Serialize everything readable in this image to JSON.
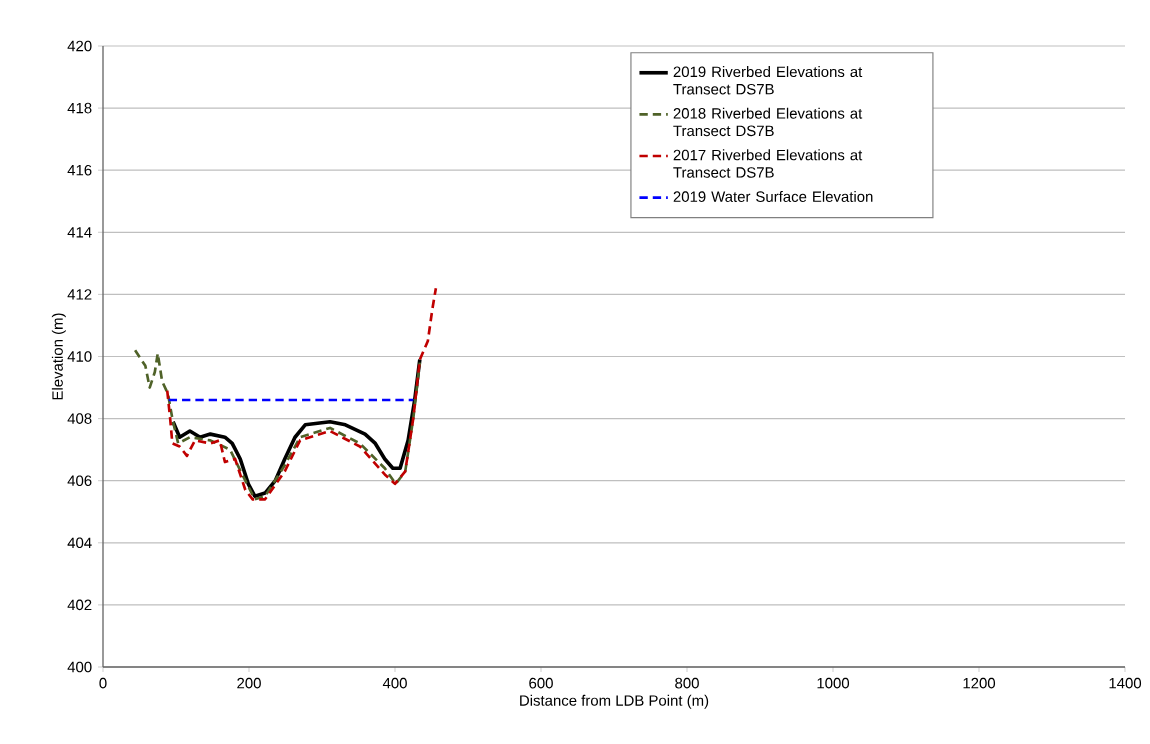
{
  "chart_data": {
    "type": "line",
    "xlabel": "Distance from LDB Point (m)",
    "ylabel": "Elevation (m)",
    "xlim": [
      0,
      1400
    ],
    "xticks": [
      0,
      200,
      400,
      600,
      800,
      1000,
      1200,
      1400
    ],
    "ylim": [
      400,
      420
    ],
    "yticks": [
      400,
      402,
      404,
      406,
      408,
      410,
      412,
      414,
      416,
      418,
      420
    ],
    "grid": "y",
    "legend": "top right",
    "marker": "none",
    "series": [
      {
        "name": "2019 Riverbed Elevations at Transect DS7B",
        "color": "#000000",
        "line_style": "solid",
        "x": [
          96,
          105,
          119,
          133,
          147,
          167,
          177,
          188,
          199,
          208,
          222,
          236,
          249,
          263,
          277,
          311,
          332,
          359,
          373,
          386,
          397,
          407,
          418,
          427,
          434
        ],
        "values": [
          407.9,
          407.4,
          407.6,
          407.4,
          407.5,
          407.4,
          407.2,
          406.7,
          405.9,
          405.5,
          405.6,
          406.0,
          406.7,
          407.4,
          407.8,
          407.9,
          407.8,
          407.5,
          407.2,
          406.7,
          406.4,
          406.4,
          407.3,
          408.6,
          409.9
        ]
      },
      {
        "name": "2018 Riverbed Elevations at Transect DS7B",
        "color": "#4f6228",
        "line_style": "dashed",
        "x": [
          44,
          58,
          64,
          71,
          75,
          81,
          89,
          95,
          103,
          119,
          147,
          174,
          195,
          208,
          222,
          249,
          270,
          311,
          352,
          386,
          401,
          414,
          425,
          434
        ],
        "values": [
          410.2,
          409.7,
          409.0,
          409.5,
          410.1,
          409.2,
          408.8,
          408.0,
          407.2,
          407.4,
          407.3,
          407.0,
          406.0,
          405.4,
          405.5,
          406.5,
          407.4,
          407.7,
          407.2,
          406.4,
          405.9,
          406.3,
          408.0,
          409.8
        ]
      },
      {
        "name": "2017 Riverbed Elevations at Transect DS7B",
        "color": "#c00000",
        "line_style": "dashed",
        "x": [
          88,
          92,
          95,
          105,
          115,
          126,
          147,
          160,
          167,
          181,
          195,
          205,
          222,
          249,
          270,
          311,
          352,
          386,
          400,
          414,
          425,
          434,
          445,
          451,
          456
        ],
        "values": [
          408.9,
          408.0,
          407.2,
          407.1,
          406.8,
          407.3,
          407.2,
          407.3,
          406.6,
          406.7,
          405.7,
          405.4,
          405.4,
          406.3,
          407.3,
          407.6,
          407.1,
          406.2,
          405.9,
          406.3,
          408.0,
          409.9,
          410.5,
          411.5,
          412.2
        ]
      },
      {
        "name": "2019 Water Surface Elevation",
        "color": "#0000ff",
        "line_style": "dashed",
        "x": [
          90,
          425
        ],
        "values": [
          408.6,
          408.6
        ]
      }
    ]
  }
}
